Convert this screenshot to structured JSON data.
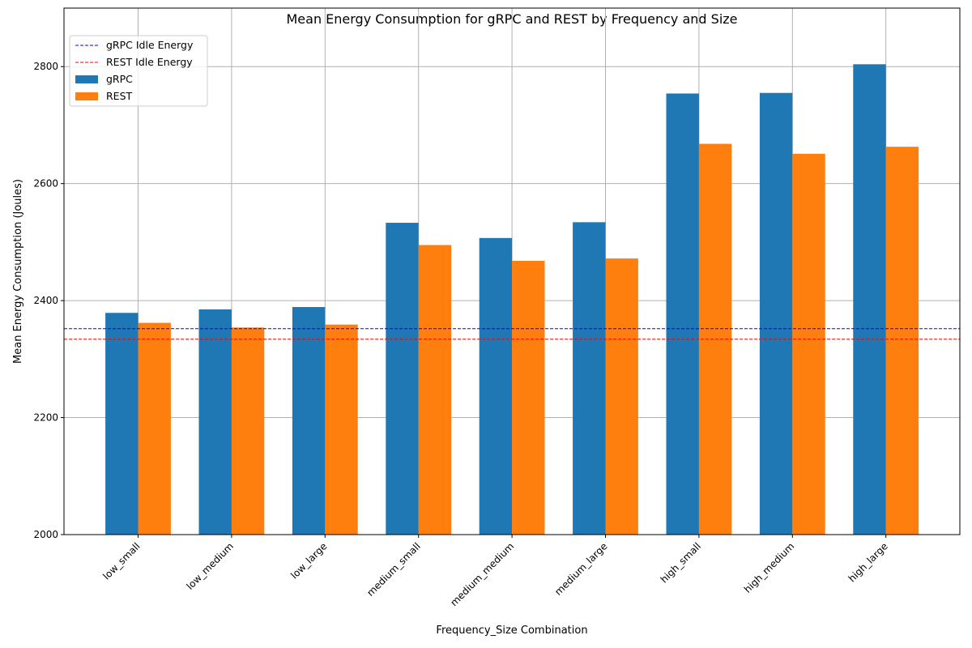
{
  "chart_data": {
    "type": "bar",
    "title": "Mean Energy Consumption for gRPC and REST by Frequency and Size",
    "xlabel": "Frequency_Size Combination",
    "ylabel": "Mean Energy Consumption (Joules)",
    "categories": [
      "low_small",
      "low_medium",
      "low_large",
      "medium_small",
      "medium_medium",
      "medium_large",
      "high_small",
      "high_medium",
      "high_large"
    ],
    "series": [
      {
        "name": "gRPC",
        "color": "#1f77b4",
        "values": [
          2379,
          2385,
          2389,
          2533,
          2507,
          2534,
          2754,
          2755,
          2804
        ]
      },
      {
        "name": "REST",
        "color": "#ff7f0e",
        "values": [
          2362,
          2354,
          2359,
          2495,
          2468,
          2472,
          2668,
          2651,
          2663
        ]
      }
    ],
    "reference_lines": [
      {
        "name": "gRPC Idle Energy",
        "value": 2352,
        "color": "#0000ff",
        "style": "dashed"
      },
      {
        "name": "REST Idle Energy",
        "value": 2334,
        "color": "#ff0000",
        "style": "dashed"
      }
    ],
    "ylim": [
      2000,
      2900
    ],
    "yticks": [
      2000,
      2200,
      2400,
      2600,
      2800
    ],
    "grid": true,
    "legend_position": "top-left"
  }
}
